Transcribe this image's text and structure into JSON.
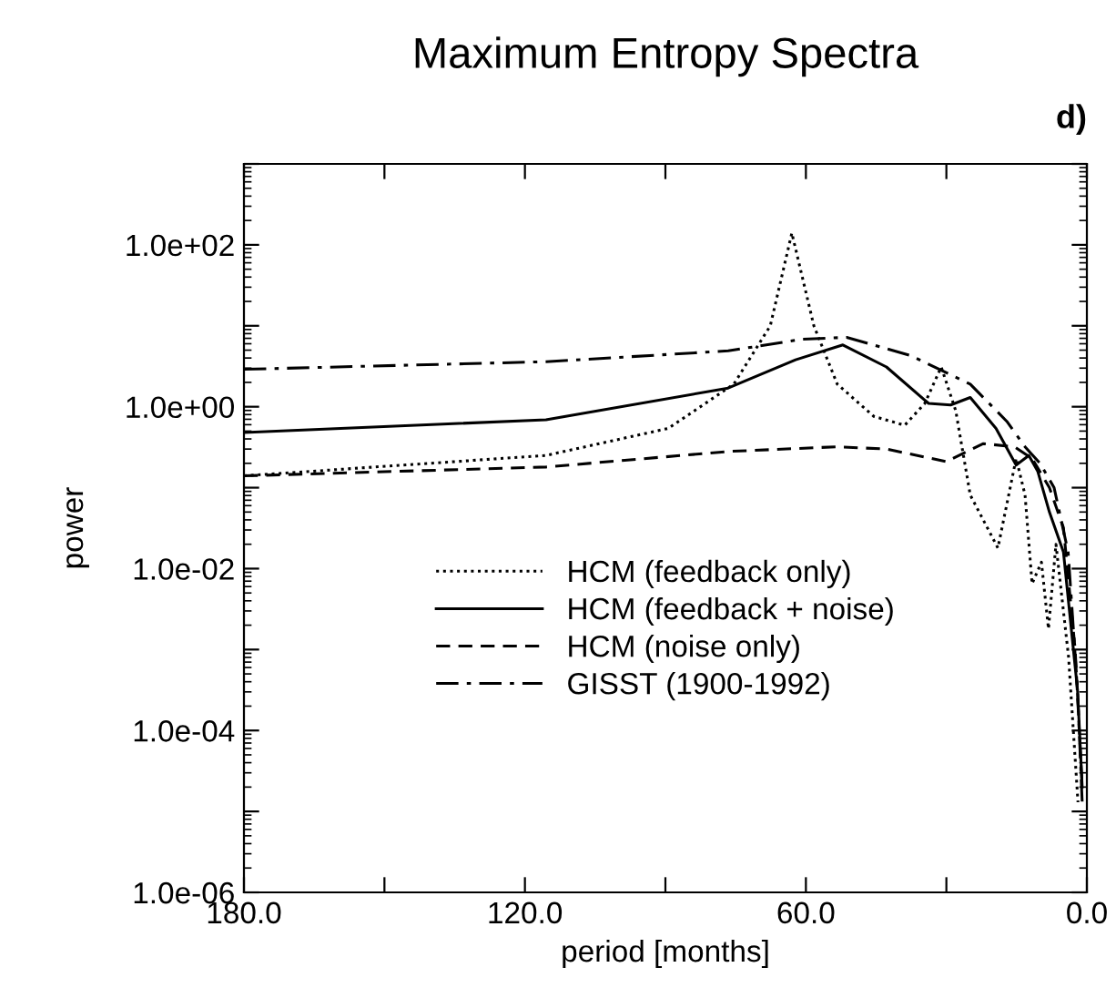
{
  "chart_data": {
    "type": "line",
    "title": "Maximum Entropy Spectra",
    "xlabel": "period [months]",
    "ylabel": "power",
    "annotations": [
      "d)"
    ],
    "xlim": [
      180,
      0
    ],
    "xticks": [
      {
        "value": 180,
        "label": "180.0"
      },
      {
        "value": 150,
        "label": null
      },
      {
        "value": 120,
        "label": "120.0"
      },
      {
        "value": 90,
        "label": null
      },
      {
        "value": 60,
        "label": "60.0"
      },
      {
        "value": 30,
        "label": null
      },
      {
        "value": 0,
        "label": "0.0"
      }
    ],
    "ylim": [
      1e-06,
      1000
    ],
    "yticks": [
      {
        "value": 1e-06,
        "label": "1.0e-06"
      },
      {
        "value": 1e-05,
        "label": null
      },
      {
        "value": 0.0001,
        "label": "1.0e-04"
      },
      {
        "value": 0.001,
        "label": null
      },
      {
        "value": 0.01,
        "label": "1.0e-02"
      },
      {
        "value": 0.1,
        "label": null
      },
      {
        "value": 1,
        "label": "1.0e+00"
      },
      {
        "value": 10,
        "label": null
      },
      {
        "value": 100,
        "label": "1.0e+02"
      },
      {
        "value": 1000,
        "label": null
      }
    ],
    "log": "y",
    "grid": false,
    "legend": "center",
    "marker": "none",
    "series": [
      {
        "name": "HCM (feedback only)",
        "color": "#000000",
        "line_style": "dotted",
        "x": [
          180,
          115.5,
          89.4,
          75.4,
          67.6,
          63,
          58.3,
          53.3,
          45.5,
          38.9,
          34.6,
          31.1,
          28,
          24.9,
          19,
          15.1,
          13.2,
          11.7,
          9.7,
          8.2,
          6.6,
          3.9,
          1.9
        ],
        "values": [
          0.14,
          0.25,
          0.54,
          1.9,
          10,
          140,
          10,
          1.9,
          0.76,
          0.59,
          1.1,
          3.1,
          0.89,
          0.081,
          0.018,
          0.23,
          0.081,
          0.0065,
          0.012,
          0.0018,
          0.02,
          0.0008,
          1.3e-05
        ]
      },
      {
        "name": "HCM (feedback + noise)",
        "color": "#000000",
        "line_style": "solid",
        "x": [
          180,
          115.5,
          76.6,
          62.2,
          52.1,
          42.8,
          33.8,
          29.1,
          24.9,
          19.4,
          15.1,
          12.4,
          10.5,
          8,
          5,
          2,
          1
        ],
        "values": [
          0.48,
          0.69,
          1.7,
          3.8,
          5.8,
          3.1,
          1.1,
          1.05,
          1.3,
          0.54,
          0.19,
          0.25,
          0.16,
          0.05,
          0.016,
          0.00032,
          2e-05
        ]
      },
      {
        "name": "HCM (noise only)",
        "color": "#000000",
        "line_style": "dashed",
        "x": [
          180,
          115.5,
          76.6,
          53.3,
          42.8,
          30,
          22.1,
          15.5,
          11.7,
          8,
          5,
          2.5,
          1
        ],
        "values": [
          0.14,
          0.18,
          0.28,
          0.32,
          0.3,
          0.21,
          0.35,
          0.32,
          0.23,
          0.1,
          0.032,
          0.001,
          2e-05
        ]
      },
      {
        "name": "GISST (1900-1992)",
        "color": "#000000",
        "line_style": "dashdot",
        "x": [
          180,
          115.5,
          76.6,
          61,
          51.3,
          37.7,
          24.9,
          17.1,
          13.2,
          10,
          7,
          4,
          2,
          1
        ],
        "values": [
          2.9,
          3.6,
          4.9,
          6.8,
          7.2,
          4.3,
          1.9,
          0.66,
          0.32,
          0.2,
          0.1,
          0.016,
          0.00032,
          1.3e-05
        ]
      }
    ]
  }
}
